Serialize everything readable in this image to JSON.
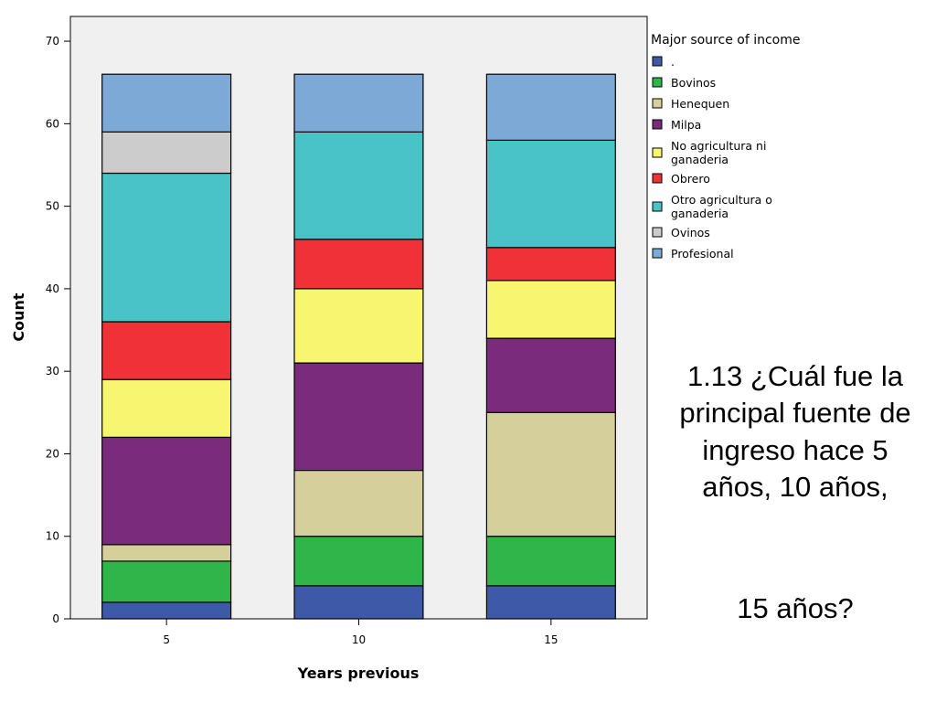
{
  "chart_data": {
    "type": "bar",
    "stacked": true,
    "categories": [
      "5",
      "10",
      "15"
    ],
    "xlabel": "Years previous",
    "ylabel": "Count",
    "ylim": [
      0,
      73
    ],
    "yticks": [
      0,
      10,
      20,
      30,
      40,
      50,
      60,
      70
    ],
    "grid": false,
    "plot_background": "#f0f0f0",
    "legend": {
      "title": "Major source of income",
      "placement": "right"
    },
    "series": [
      {
        "name": ".",
        "color": "#3e59a8",
        "values": [
          2,
          4,
          4
        ]
      },
      {
        "name": "Bovinos",
        "color": "#2fb64a",
        "values": [
          5,
          6,
          6
        ]
      },
      {
        "name": "Henequen",
        "color": "#d4cf9b",
        "values": [
          2,
          8,
          15
        ]
      },
      {
        "name": "Milpa",
        "color": "#7b2b7c",
        "values": [
          13,
          13,
          9
        ]
      },
      {
        "name": "No agricultura ni ganaderia",
        "color": "#f8f571",
        "values": [
          7,
          9,
          7
        ]
      },
      {
        "name": "Obrero",
        "color": "#ee3238",
        "values": [
          7,
          6,
          4
        ]
      },
      {
        "name": "Otro agricultura o ganaderia",
        "color": "#4ac3c7",
        "values": [
          18,
          13,
          13
        ]
      },
      {
        "name": "Ovinos",
        "color": "#cccccc",
        "values": [
          5,
          0,
          0
        ]
      },
      {
        "name": "Profesional",
        "color": "#7ca9d6",
        "values": [
          7,
          7,
          8
        ]
      }
    ]
  },
  "question": {
    "text": "1.13 ¿Cuál fue la principal fuente de ingreso hace 5 años, 10 años,",
    "line2": "15 años?"
  }
}
